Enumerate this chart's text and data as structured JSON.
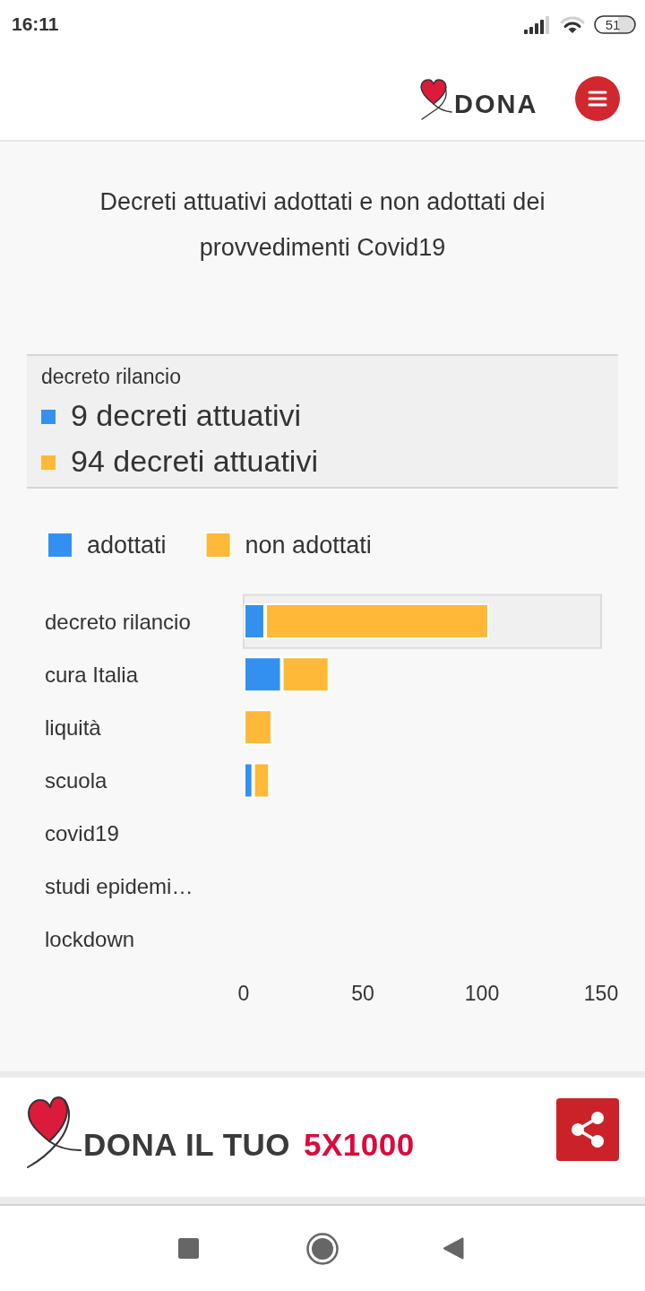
{
  "chart_data": {
    "type": "bar",
    "orientation": "horizontal",
    "stacked": true,
    "title": "Decreti attuativi adottati e non adottati dei provvedimenti Covid19",
    "categories": [
      "decreto rilancio",
      "cura Italia",
      "liquità",
      "scuola",
      "covid19",
      "studi epidemi…",
      "lockdown"
    ],
    "series": [
      {
        "name": "adottati",
        "color": "#3490f0",
        "values": [
          9,
          16,
          0,
          4,
          0,
          0,
          0
        ]
      },
      {
        "name": "non adottati",
        "color": "#ffb938",
        "values": [
          94,
          20,
          12,
          7,
          0,
          0,
          0
        ]
      }
    ],
    "xlim": [
      0,
      150
    ],
    "xticks": [
      0,
      50,
      100,
      150
    ],
    "legend": "top left",
    "bands": [
      {
        "axis": "y",
        "from": "decreto rilancio",
        "to": "decreto rilancio",
        "color": "#f0f0f0"
      }
    ],
    "annotations": [
      "16:11",
      "51",
      "DONA",
      "decreto rilancio",
      "9 decreti attuativi",
      "94 decreti attuativi",
      "DONA IL TUO",
      "5X1000"
    ]
  }
}
